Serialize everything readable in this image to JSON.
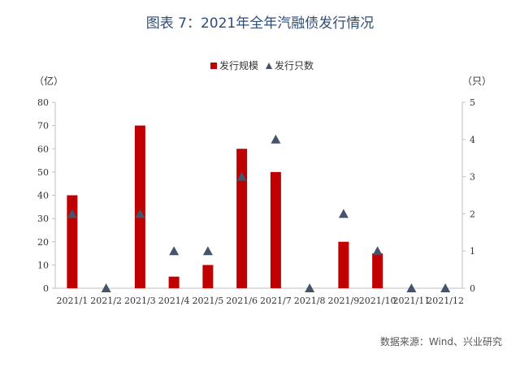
{
  "title": "图表 7：2021年全年汽融债发行情况",
  "source": "数据来源：Wind、兴业研究",
  "chart_data": {
    "type": "bar",
    "categories": [
      "2021/1",
      "2021/2",
      "2021/3",
      "2021/4",
      "2021/5",
      "2021/6",
      "2021/7",
      "2021/8",
      "2021/9",
      "2021/10",
      "2021/11",
      "2021/12"
    ],
    "series": [
      {
        "name": "发行规模",
        "type": "bar",
        "axis": "left",
        "color": "#c00000",
        "values": [
          40,
          0,
          70,
          5,
          10,
          60,
          50,
          0,
          20,
          15,
          0,
          0
        ]
      },
      {
        "name": "发行只数",
        "type": "scatter",
        "marker": "triangle",
        "axis": "right",
        "color": "#44546a",
        "values": [
          2,
          0,
          2,
          1,
          1,
          3,
          4,
          0,
          2,
          1,
          0,
          0
        ]
      }
    ],
    "y_left": {
      "unit": "（亿）",
      "min": 0,
      "max": 80,
      "step": 10,
      "ticks": [
        "0",
        "10",
        "20",
        "30",
        "40",
        "50",
        "60",
        "70",
        "80"
      ]
    },
    "y_right": {
      "unit": "（只）",
      "min": 0,
      "max": 5,
      "step": 1,
      "ticks": [
        "0",
        "1",
        "2",
        "3",
        "4",
        "5"
      ]
    },
    "legend_position": "top-center",
    "grid": false
  }
}
